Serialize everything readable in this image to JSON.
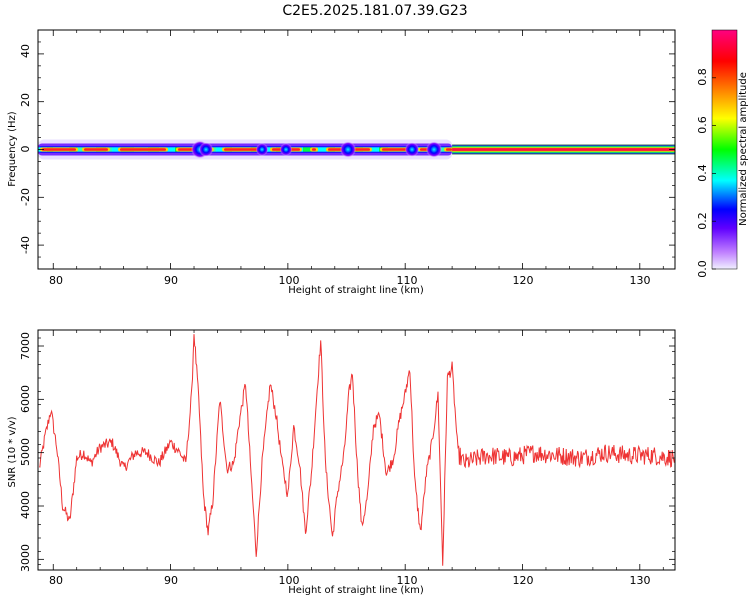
{
  "title": "C2E5.2025.181.07.39.G23",
  "chart_data": [
    {
      "type": "heatmap",
      "xlabel": "Height of straight line (km)",
      "ylabel": "Frequency (Hz)",
      "xlim": [
        78.7,
        133
      ],
      "ylim": [
        -50,
        50
      ],
      "xticks": [
        "80",
        "90",
        "100",
        "110",
        "120",
        "130"
      ],
      "yticks": [
        "40",
        "20",
        "0",
        "-20",
        "-40"
      ],
      "colorbar": {
        "label": "Normalized spectral amplitude",
        "ticks": [
          "0.0",
          "0.2",
          "0.4",
          "0.6",
          "0.8"
        ],
        "range": [
          0,
          1
        ],
        "colors": [
          "#f0f0ff",
          "#8000ff",
          "#0000ff",
          "#00ffff",
          "#00ff00",
          "#ffff00",
          "#ff8000",
          "#ff0000",
          "#ff0080"
        ]
      },
      "band_center_hz": 0,
      "disturbed_region_km": [
        78.7,
        114
      ],
      "steady_region_km": [
        114,
        133
      ]
    },
    {
      "type": "line",
      "xlabel": "Height of straight line (km)",
      "ylabel": "SNR (10 * v/v)",
      "xlim": [
        78.7,
        133
      ],
      "ylim": [
        2800,
        7300
      ],
      "xticks": [
        "80",
        "90",
        "100",
        "110",
        "120",
        "130"
      ],
      "yticks": [
        "7000",
        "6000",
        "5000",
        "4000",
        "3000"
      ],
      "line_color": "#ee3333",
      "series": [
        {
          "x": [
            78.8,
            79.3,
            79.8,
            80.3,
            80.8,
            81.4,
            82.0,
            82.6,
            83.2,
            84.0,
            85.0,
            86.0,
            87.0,
            88.0,
            89.0,
            90.0,
            90.8,
            91.3,
            91.8,
            92.0,
            92.4,
            92.8,
            93.2,
            93.6,
            94.2,
            94.8,
            95.4,
            95.8,
            96.4,
            96.8,
            97.3,
            97.8,
            98.5,
            99.0,
            99.5,
            100.0,
            100.5,
            101.0,
            101.5,
            102.0,
            102.5,
            102.8,
            103.2,
            103.8,
            104.2,
            104.8,
            105.2,
            105.5,
            105.9,
            106.3,
            106.8,
            107.3,
            107.8,
            108.4,
            109.0,
            109.5,
            110.0,
            110.4,
            110.8,
            111.3,
            111.8,
            112.3,
            112.8,
            113.2,
            113.6,
            114.0,
            114.5,
            115.0,
            117.0,
            119.0,
            121.0,
            123.0,
            125.0,
            127.0,
            129.0,
            131.0,
            133.0
          ],
          "y": [
            4700,
            5300,
            5800,
            5100,
            4000,
            3700,
            4900,
            5000,
            4800,
            5100,
            5200,
            4700,
            5000,
            5000,
            4800,
            5200,
            5000,
            4800,
            6100,
            7250,
            6000,
            4200,
            3500,
            4100,
            6000,
            4700,
            4800,
            5500,
            6300,
            4800,
            3100,
            4800,
            6300,
            5700,
            4800,
            4200,
            5500,
            4800,
            3500,
            4600,
            6200,
            7100,
            4800,
            3400,
            4200,
            5000,
            6100,
            6500,
            4800,
            3600,
            4200,
            5500,
            5700,
            4600,
            4900,
            5600,
            6100,
            6600,
            4500,
            3500,
            4600,
            5200,
            6100,
            2900,
            6400,
            6600,
            5000,
            4800,
            4950,
            4900,
            5000,
            4950,
            4900,
            5000,
            4950,
            4950,
            4900
          ]
        }
      ]
    }
  ]
}
